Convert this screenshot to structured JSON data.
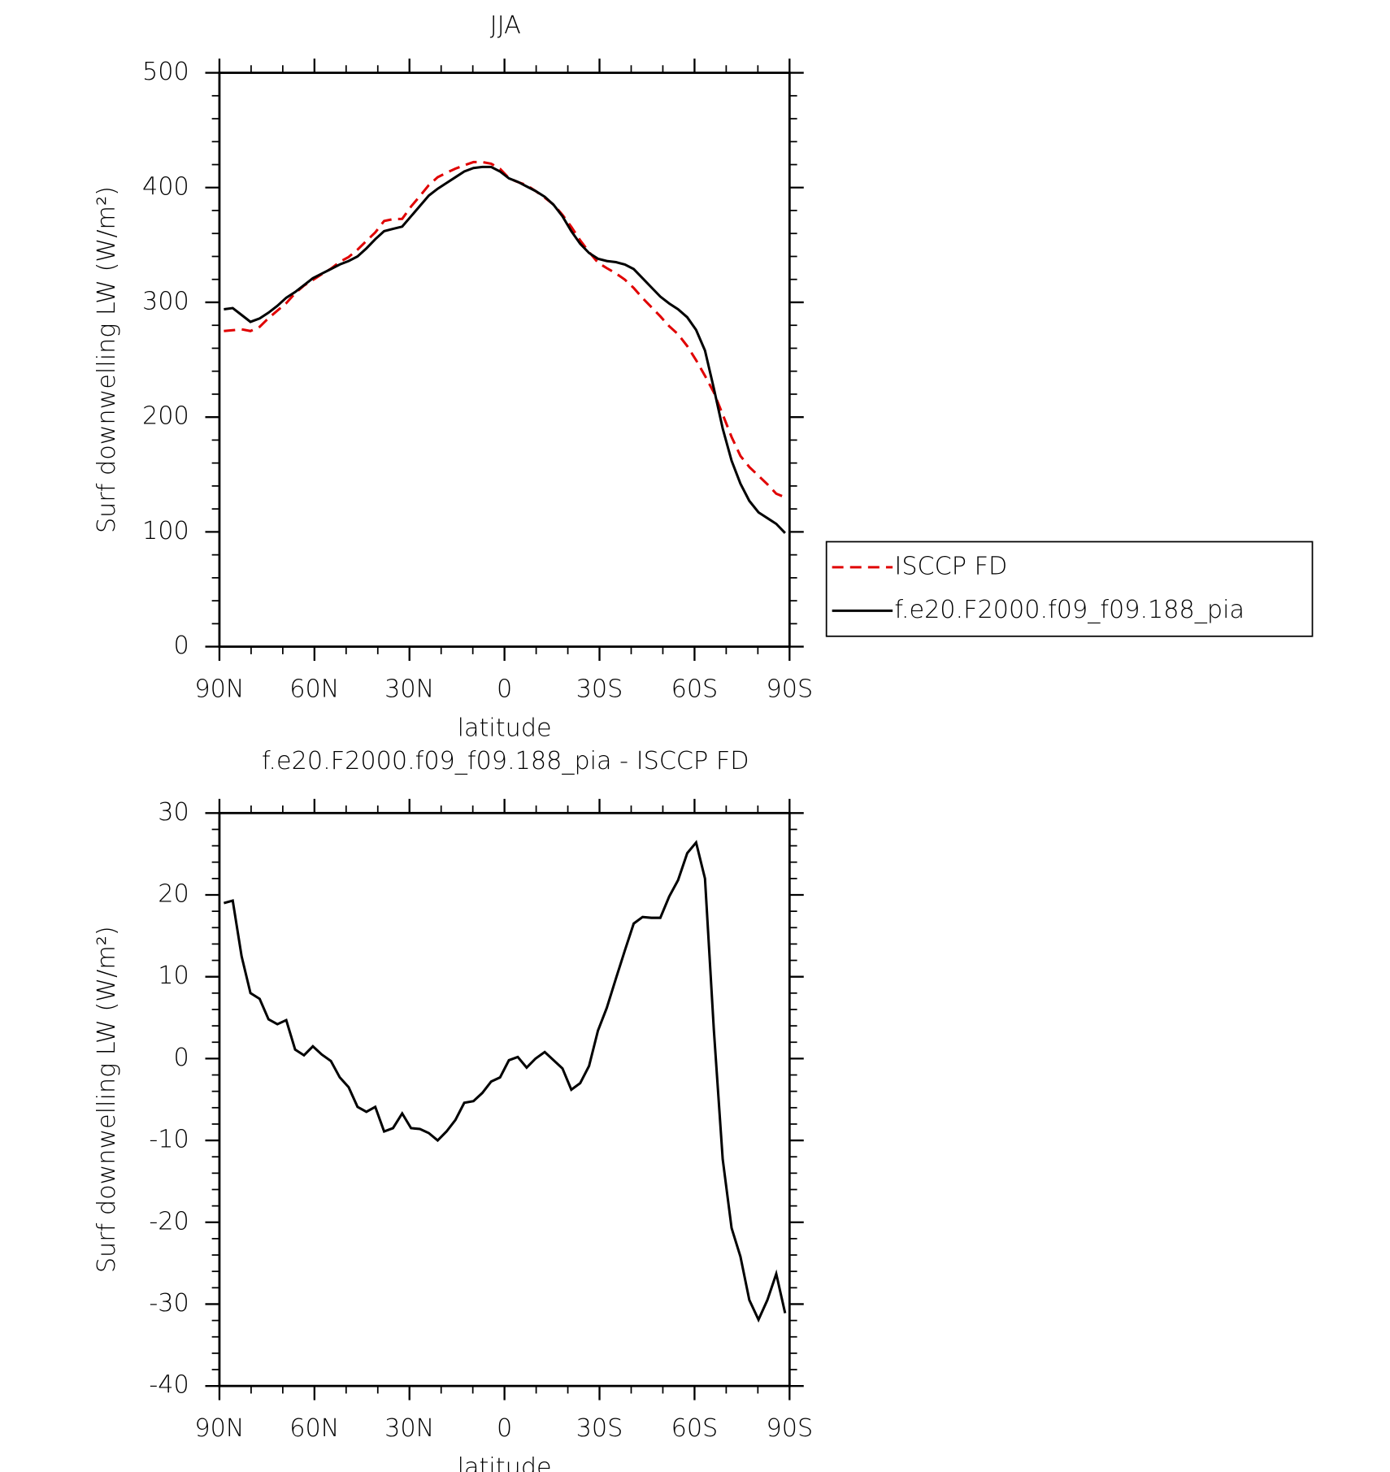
{
  "chart_data": [
    {
      "type": "line",
      "title": "JJA",
      "xlabel": "latitude",
      "ylabel": "Surf downwelling LW (W/m²)",
      "x": [
        88.6,
        85.8,
        83.0,
        80.2,
        77.3,
        74.5,
        71.7,
        68.9,
        66.1,
        63.3,
        60.5,
        57.7,
        54.8,
        52.0,
        49.2,
        46.4,
        43.6,
        40.8,
        38.0,
        35.2,
        32.3,
        29.5,
        26.7,
        23.9,
        21.1,
        18.3,
        15.5,
        12.7,
        9.8,
        7.0,
        4.2,
        1.4,
        -1.4,
        -4.2,
        -7.0,
        -9.8,
        -12.7,
        -15.5,
        -18.3,
        -21.1,
        -23.9,
        -26.7,
        -29.5,
        -32.3,
        -35.2,
        -38.0,
        -40.8,
        -43.6,
        -46.4,
        -49.2,
        -52.0,
        -54.8,
        -57.7,
        -60.5,
        -63.3,
        -66.1,
        -68.9,
        -71.7,
        -74.5,
        -77.3,
        -80.2,
        -83.0,
        -85.8,
        -88.6
      ],
      "xlim": [
        90,
        -90
      ],
      "xticks": [
        {
          "value": 90,
          "label": "90N"
        },
        {
          "value": 60,
          "label": "60N"
        },
        {
          "value": 30,
          "label": "30N"
        },
        0,
        {
          "value": -30,
          "label": "30S"
        },
        {
          "value": -60,
          "label": "60S"
        },
        {
          "value": -90,
          "label": "90S"
        }
      ],
      "ylim": [
        0,
        500
      ],
      "yticks": [
        0,
        100,
        200,
        300,
        400,
        500
      ],
      "legend": "right",
      "series": [
        {
          "name": "ISCCP FD",
          "color": "#e00000",
          "dash": true,
          "values": [
            275,
            275.7,
            276.5,
            275,
            278.7,
            286.2,
            292.8,
            299.3,
            307.9,
            314.6,
            319.5,
            324.5,
            329.3,
            335.3,
            339.5,
            345.9,
            353.5,
            360.9,
            370.9,
            372.5,
            372.7,
            383.5,
            392.6,
            402.1,
            409,
            412.9,
            416.5,
            419.4,
            422.2,
            422.2,
            420.8,
            416.3,
            408.2,
            404.8,
            402.1,
            397,
            391.2,
            385.2,
            376.2,
            365.8,
            354,
            343.9,
            334.6,
            329.8,
            325.2,
            319.8,
            312.5,
            303.7,
            295.8,
            287.8,
            279.2,
            272.2,
            261.9,
            249.6,
            236,
            221.5,
            202.3,
            182.7,
            166.2,
            156.5,
            148.9,
            141.5,
            133.3,
            130.1
          ]
        },
        {
          "name": "f.e20.F2000.f09_f09.188_pia",
          "color": "#000000",
          "dash": false,
          "values": [
            294,
            295,
            289,
            283,
            286,
            291,
            297,
            304,
            309,
            315,
            321,
            325,
            329,
            333,
            336,
            340,
            347,
            355,
            362,
            364,
            366,
            375,
            384,
            393,
            399,
            404,
            409,
            414,
            417,
            418,
            418,
            414,
            408,
            405,
            401,
            397,
            392,
            385,
            375,
            362,
            351,
            343,
            338,
            336,
            335,
            333,
            329,
            321,
            313,
            305,
            299,
            294,
            287,
            276,
            258,
            225,
            190,
            162,
            142,
            127,
            117,
            112,
            107,
            99
          ]
        }
      ]
    },
    {
      "type": "line",
      "title": "f.e20.F2000.f09_f09.188_pia - ISCCP FD",
      "xlabel": "latitude",
      "ylabel": "Surf downwelling LW (W/m²)",
      "x": [
        88.6,
        85.8,
        83.0,
        80.2,
        77.3,
        74.5,
        71.7,
        68.9,
        66.1,
        63.3,
        60.5,
        57.7,
        54.8,
        52.0,
        49.2,
        46.4,
        43.6,
        40.8,
        38.0,
        35.2,
        32.3,
        29.5,
        26.7,
        23.9,
        21.1,
        18.3,
        15.5,
        12.7,
        9.8,
        7.0,
        4.2,
        1.4,
        -1.4,
        -4.2,
        -7.0,
        -9.8,
        -12.7,
        -15.5,
        -18.3,
        -21.1,
        -23.9,
        -26.7,
        -29.5,
        -32.3,
        -35.2,
        -38.0,
        -40.8,
        -43.6,
        -46.4,
        -49.2,
        -52.0,
        -54.8,
        -57.7,
        -60.5,
        -63.3,
        -66.1,
        -68.9,
        -71.7,
        -74.5,
        -77.3,
        -80.2,
        -83.0,
        -85.8,
        -88.6
      ],
      "xlim": [
        90,
        -90
      ],
      "xticks": [
        {
          "value": 90,
          "label": "90N"
        },
        {
          "value": 60,
          "label": "60N"
        },
        {
          "value": 30,
          "label": "30N"
        },
        0,
        {
          "value": -30,
          "label": "30S"
        },
        {
          "value": -60,
          "label": "60S"
        },
        {
          "value": -90,
          "label": "90S"
        }
      ],
      "ylim": [
        -40,
        30
      ],
      "yticks": [
        -40,
        -30,
        -20,
        -10,
        0,
        10,
        20,
        30
      ],
      "color": "#000000",
      "values": [
        19,
        19.3,
        12.5,
        8,
        7.3,
        4.8,
        4.2,
        4.7,
        1.1,
        0.4,
        1.5,
        0.5,
        -0.3,
        -2.3,
        -3.5,
        -5.9,
        -6.5,
        -5.9,
        -8.9,
        -8.5,
        -6.7,
        -8.5,
        -8.6,
        -9.1,
        -10,
        -8.9,
        -7.5,
        -5.4,
        -5.2,
        -4.2,
        -2.8,
        -2.3,
        -0.2,
        0.2,
        -1.1,
        0,
        0.8,
        -0.2,
        -1.2,
        -3.8,
        -3,
        -0.9,
        3.4,
        6.2,
        9.8,
        13.2,
        16.5,
        17.3,
        17.2,
        17.2,
        19.8,
        21.8,
        25.1,
        26.4,
        22,
        3.5,
        -12.3,
        -20.7,
        -24.2,
        -29.5,
        -31.9,
        -29.5,
        -26.3,
        -31.1
      ]
    }
  ]
}
